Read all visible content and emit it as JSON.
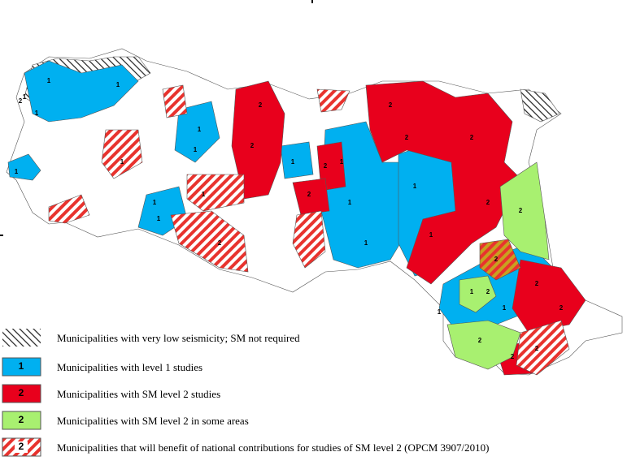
{
  "legend": {
    "items": [
      {
        "text": "Municipalities with very low seismicity; SM not required"
      },
      {
        "symbol": "1",
        "text": "Municipalities with level 1 studies"
      },
      {
        "symbol": "2",
        "text": "Municipalities with SM level 2 studies"
      },
      {
        "symbol": "2",
        "text": "Municipalities with SM level 2 in some areas"
      },
      {
        "symbol": "2",
        "text": "Municipalities that will benefit of national contributions for studies of SM level 2 (OPCM 3907/2010)"
      }
    ]
  },
  "map_labels": [
    "1",
    "1",
    "1",
    "1",
    "1",
    "1",
    "1",
    "1",
    "1",
    "1",
    "1",
    "1",
    "1",
    "1",
    "1",
    "1",
    "1",
    "1",
    "2",
    "2",
    "2",
    "2",
    "2",
    "2",
    "2",
    "2",
    "2",
    "2",
    "2",
    "2",
    "2",
    "2",
    "2",
    "2",
    "1",
    "1",
    "2",
    "2"
  ]
}
